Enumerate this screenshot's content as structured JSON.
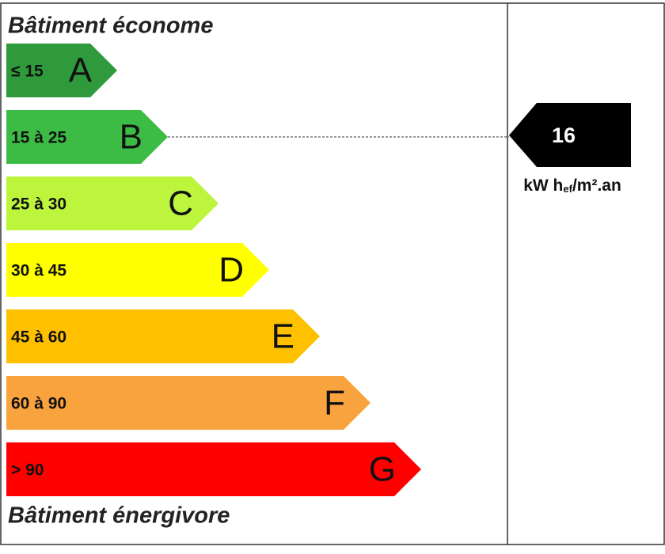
{
  "header": {
    "title": "Bâtiment économe"
  },
  "classes": [
    {
      "range": "≤ 15",
      "letter": "A",
      "color": "#2f9a3c"
    },
    {
      "range": "15 à 25",
      "letter": "B",
      "color": "#3cbc45"
    },
    {
      "range": "25 à 30",
      "letter": "C",
      "color": "#bdf53c"
    },
    {
      "range": "30 à 45",
      "letter": "D",
      "color": "#ffff00"
    },
    {
      "range": "45 à 60",
      "letter": "E",
      "color": "#ffc000"
    },
    {
      "range": "60 à 90",
      "letter": "F",
      "color": "#f8a33e"
    },
    {
      "range": "> 90",
      "letter": "G",
      "color": "#ff0000"
    }
  ],
  "indicator": {
    "value": "16",
    "unit_main": "kW h",
    "unit_sub": "ef",
    "unit_rest": "/m².an"
  },
  "footer": {
    "title": "Bâtiment énergivore"
  }
}
